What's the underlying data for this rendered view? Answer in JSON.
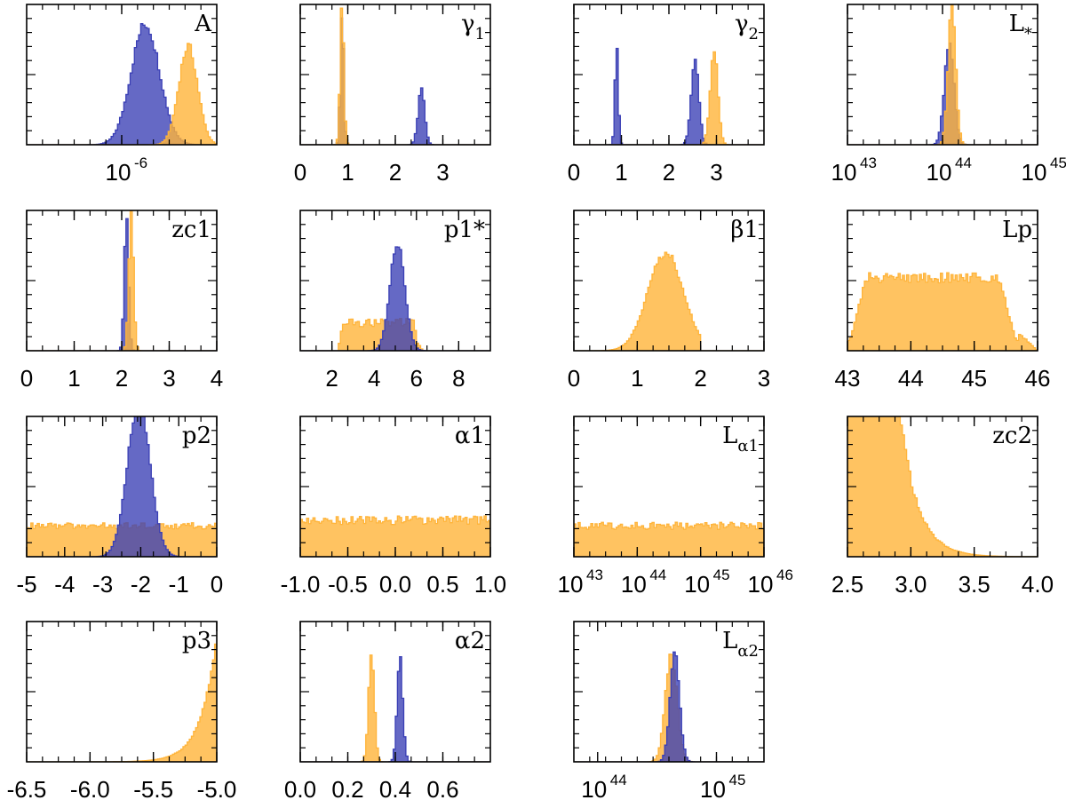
{
  "colors": {
    "blue": "#3a3fb5",
    "orange": "#ffb43a"
  },
  "chart_data": [
    {
      "type": "histogram",
      "label": "A",
      "x_scale": "log",
      "xlim": [
        -6.6,
        -5.4
      ],
      "ticks": [
        {
          "v": -6,
          "base": "10",
          "exp": "-6"
        }
      ],
      "series": [
        {
          "name": "blue",
          "color": "blue",
          "peaks": [
            {
              "mu": -5.85,
              "sigma": 0.09,
              "amp": 0.86
            }
          ],
          "noise": 0.05
        },
        {
          "name": "orange",
          "color": "orange",
          "peaks": [
            {
              "mu": -5.58,
              "sigma": 0.06,
              "amp": 0.7
            }
          ],
          "ymax": 1.0,
          "noise": 0.05
        }
      ]
    },
    {
      "type": "histogram",
      "label": "γ",
      "label_sub": "1",
      "xlim": [
        0,
        4
      ],
      "ticks": [
        {
          "v": 0,
          "t": "0"
        },
        {
          "v": 1,
          "t": "1"
        },
        {
          "v": 2,
          "t": "2"
        },
        {
          "v": 3,
          "t": "3"
        }
      ],
      "series": [
        {
          "name": "blue",
          "color": "blue",
          "peaks": [
            {
              "mu": 0.88,
              "sigma": 0.035,
              "amp": 1.0
            },
            {
              "mu": 2.55,
              "sigma": 0.07,
              "amp": 0.4
            }
          ],
          "noise": 0.05
        },
        {
          "name": "orange",
          "color": "orange",
          "peaks": [
            {
              "mu": 0.88,
              "sigma": 0.04,
              "amp": 1.0
            }
          ],
          "noise": 0.03
        }
      ]
    },
    {
      "type": "histogram",
      "label": "γ",
      "label_sub": "2",
      "xlim": [
        0,
        4
      ],
      "ticks": [
        {
          "v": 0,
          "t": "0"
        },
        {
          "v": 1,
          "t": "1"
        },
        {
          "v": 2,
          "t": "2"
        },
        {
          "v": 3,
          "t": "3"
        }
      ],
      "series": [
        {
          "name": "blue",
          "color": "blue",
          "peaks": [
            {
              "mu": 0.9,
              "sigma": 0.035,
              "amp": 0.72
            },
            {
              "mu": 2.55,
              "sigma": 0.08,
              "amp": 0.63
            }
          ],
          "noise": 0.05
        },
        {
          "name": "orange",
          "color": "orange",
          "peaks": [
            {
              "mu": 2.95,
              "sigma": 0.08,
              "amp": 0.69
            }
          ],
          "noise": 0.05
        }
      ]
    },
    {
      "type": "histogram",
      "label": "L",
      "label_sub": "*",
      "x_scale": "log",
      "xlim": [
        43,
        45
      ],
      "ticks": [
        {
          "v": 43,
          "base": "10",
          "exp": "43"
        },
        {
          "v": 44,
          "base": "10",
          "exp": "44"
        },
        {
          "v": 45,
          "base": "10",
          "exp": "45"
        }
      ],
      "series": [
        {
          "name": "blue",
          "color": "blue",
          "peaks": [
            {
              "mu": 44.07,
              "sigma": 0.05,
              "amp": 0.73
            }
          ],
          "noise": 0.05
        },
        {
          "name": "orange",
          "color": "orange",
          "peaks": [
            {
              "mu": 44.1,
              "sigma": 0.04,
              "amp": 1.0
            }
          ],
          "noise": 0.04
        }
      ]
    },
    {
      "type": "histogram",
      "label": "zc1",
      "xlim": [
        0,
        4
      ],
      "ticks": [
        {
          "v": 0,
          "t": "0"
        },
        {
          "v": 1,
          "t": "1"
        },
        {
          "v": 2,
          "t": "2"
        },
        {
          "v": 3,
          "t": "3"
        },
        {
          "v": 4,
          "t": "4"
        }
      ],
      "series": [
        {
          "name": "blue",
          "color": "blue",
          "peaks": [
            {
              "mu": 2.1,
              "sigma": 0.045,
              "amp": 1.0
            }
          ],
          "noise": 0.03
        },
        {
          "name": "orange",
          "color": "orange",
          "peaks": [
            {
              "mu": 2.2,
              "sigma": 0.05,
              "amp": 1.0
            }
          ],
          "noise": 0.03
        }
      ]
    },
    {
      "type": "histogram",
      "label": "p1*",
      "xlim": [
        0.5,
        9.5
      ],
      "ticks": [
        {
          "v": 2,
          "t": "2"
        },
        {
          "v": 4,
          "t": "4"
        },
        {
          "v": 6,
          "t": "6"
        },
        {
          "v": 8,
          "t": "8"
        }
      ],
      "series": [
        {
          "name": "orange",
          "color": "orange",
          "flat": {
            "from": 2.3,
            "to": 6.1,
            "level": 0.2,
            "edge": 0.2
          },
          "noise": 0.15
        },
        {
          "name": "blue",
          "color": "blue",
          "peaks": [
            {
              "mu": 5.1,
              "sigma": 0.35,
              "amp": 0.77
            }
          ],
          "noise": 0.04
        }
      ]
    },
    {
      "type": "histogram",
      "label": "β1",
      "xlim": [
        0,
        3
      ],
      "ticks": [
        {
          "v": 0,
          "t": "0"
        },
        {
          "v": 1,
          "t": "1"
        },
        {
          "v": 2,
          "t": "2"
        },
        {
          "v": 3,
          "t": "3"
        }
      ],
      "series": [
        {
          "name": "orange",
          "color": "orange",
          "peaks": [
            {
              "mu": 1.45,
              "sigma": 0.28,
              "amp": 0.7
            }
          ],
          "cutoff": 2.0,
          "noise": 0.04
        }
      ]
    },
    {
      "type": "histogram",
      "label": "Lp",
      "xlim": [
        43,
        46
      ],
      "ticks": [
        {
          "v": 43,
          "t": "43"
        },
        {
          "v": 44,
          "t": "44"
        },
        {
          "v": 45,
          "t": "45"
        },
        {
          "v": 46,
          "t": "46"
        }
      ],
      "series": [
        {
          "name": "orange",
          "color": "orange",
          "flat": {
            "from": 43.0,
            "to": 45.7,
            "level": 0.52,
            "edge": 0.3
          },
          "noise": 0.07
        }
      ]
    },
    {
      "type": "histogram",
      "label": "p2",
      "xlim": [
        -5,
        0
      ],
      "ticks": [
        {
          "v": -5,
          "t": "-5"
        },
        {
          "v": -4,
          "t": "-4"
        },
        {
          "v": -3,
          "t": "-3"
        },
        {
          "v": -2,
          "t": "-2"
        },
        {
          "v": -1,
          "t": "-1"
        },
        {
          "v": 0,
          "t": "0"
        }
      ],
      "series": [
        {
          "name": "orange",
          "color": "orange",
          "flat": {
            "from": -5.0,
            "to": 0.0,
            "level": 0.22,
            "edge": 0.0
          },
          "noise": 0.1
        },
        {
          "name": "blue",
          "color": "blue",
          "peaks": [
            {
              "mu": -2.05,
              "sigma": 0.3,
              "amp": 1.1
            }
          ],
          "noise": 0.03
        }
      ]
    },
    {
      "type": "histogram",
      "label": "α1",
      "xlim": [
        -1,
        1
      ],
      "ticks": [
        {
          "v": -1,
          "t": "-1.0"
        },
        {
          "v": -0.5,
          "t": "-0.5"
        },
        {
          "v": 0,
          "t": "0.0"
        },
        {
          "v": 0.5,
          "t": "0.5"
        },
        {
          "v": 1,
          "t": "1.0"
        }
      ],
      "series": [
        {
          "name": "orange",
          "color": "orange",
          "flat": {
            "from": -1.0,
            "to": 1.0,
            "level": 0.26,
            "edge": 0.0
          },
          "noise": 0.12
        }
      ]
    },
    {
      "type": "histogram",
      "label": "L",
      "label_sub": "α1",
      "x_scale": "log",
      "xlim": [
        43,
        46
      ],
      "ticks": [
        {
          "v": 43,
          "base": "10",
          "exp": "43"
        },
        {
          "v": 44,
          "base": "10",
          "exp": "44"
        },
        {
          "v": 45,
          "base": "10",
          "exp": "45"
        },
        {
          "v": 46,
          "base": "10",
          "exp": "46"
        }
      ],
      "series": [
        {
          "name": "orange",
          "color": "orange",
          "flat": {
            "from": 43.0,
            "to": 46.0,
            "level": 0.22,
            "edge": 0.0
          },
          "noise": 0.12
        }
      ]
    },
    {
      "type": "histogram",
      "label": "zc2",
      "xlim": [
        2.5,
        4.0
      ],
      "ticks": [
        {
          "v": 2.5,
          "t": "2.5"
        },
        {
          "v": 3.0,
          "t": "3.0"
        },
        {
          "v": 3.5,
          "t": "3.5"
        },
        {
          "v": 4.0,
          "t": "4.0"
        }
      ],
      "series": [
        {
          "name": "orange",
          "color": "orange",
          "skew": {
            "start": 2.5,
            "rise": 0.1,
            "peak": 2.75,
            "flat_to": 2.85,
            "decay": 0.14
          },
          "ymax": 0.62,
          "noise": 0.05
        }
      ]
    },
    {
      "type": "histogram",
      "label": "p3",
      "xlim": [
        -6.5,
        -5.0
      ],
      "ticks": [
        {
          "v": -6.5,
          "t": "-6.5"
        },
        {
          "v": -6.0,
          "t": "-6.0"
        },
        {
          "v": -5.5,
          "t": "-5.5"
        },
        {
          "v": -5.0,
          "t": "-5.0"
        }
      ],
      "series": [
        {
          "name": "orange",
          "color": "orange",
          "growth": {
            "to": -5.0,
            "scale": 0.12
          },
          "ymax": 1.1,
          "noise": 0.03
        }
      ]
    },
    {
      "type": "histogram",
      "label": "α2",
      "xlim": [
        0,
        0.8
      ],
      "ticks": [
        {
          "v": 0,
          "t": "0.0"
        },
        {
          "v": 0.2,
          "t": "0.2"
        },
        {
          "v": 0.4,
          "t": "0.4"
        },
        {
          "v": 0.6,
          "t": "0.6"
        }
      ],
      "series": [
        {
          "name": "orange",
          "color": "orange",
          "peaks": [
            {
              "mu": 0.3,
              "sigma": 0.012,
              "amp": 0.8
            }
          ],
          "noise": 0.05
        },
        {
          "name": "blue",
          "color": "blue",
          "peaks": [
            {
              "mu": 0.42,
              "sigma": 0.012,
              "amp": 0.73
            }
          ],
          "noise": 0.05
        }
      ]
    },
    {
      "type": "histogram",
      "label": "L",
      "label_sub": "α2",
      "x_scale": "log",
      "xlim": [
        43.8,
        45.4
      ],
      "ticks": [
        {
          "v": 44,
          "base": "10",
          "exp": "44"
        },
        {
          "v": 45,
          "base": "10",
          "exp": "45"
        }
      ],
      "series": [
        {
          "name": "orange",
          "color": "orange",
          "peaks": [
            {
              "mu": 44.62,
              "sigma": 0.05,
              "amp": 0.75
            }
          ],
          "noise": 0.05
        },
        {
          "name": "blue",
          "color": "blue",
          "peaks": [
            {
              "mu": 44.65,
              "sigma": 0.04,
              "amp": 0.77
            }
          ],
          "noise": 0.05
        }
      ]
    }
  ]
}
